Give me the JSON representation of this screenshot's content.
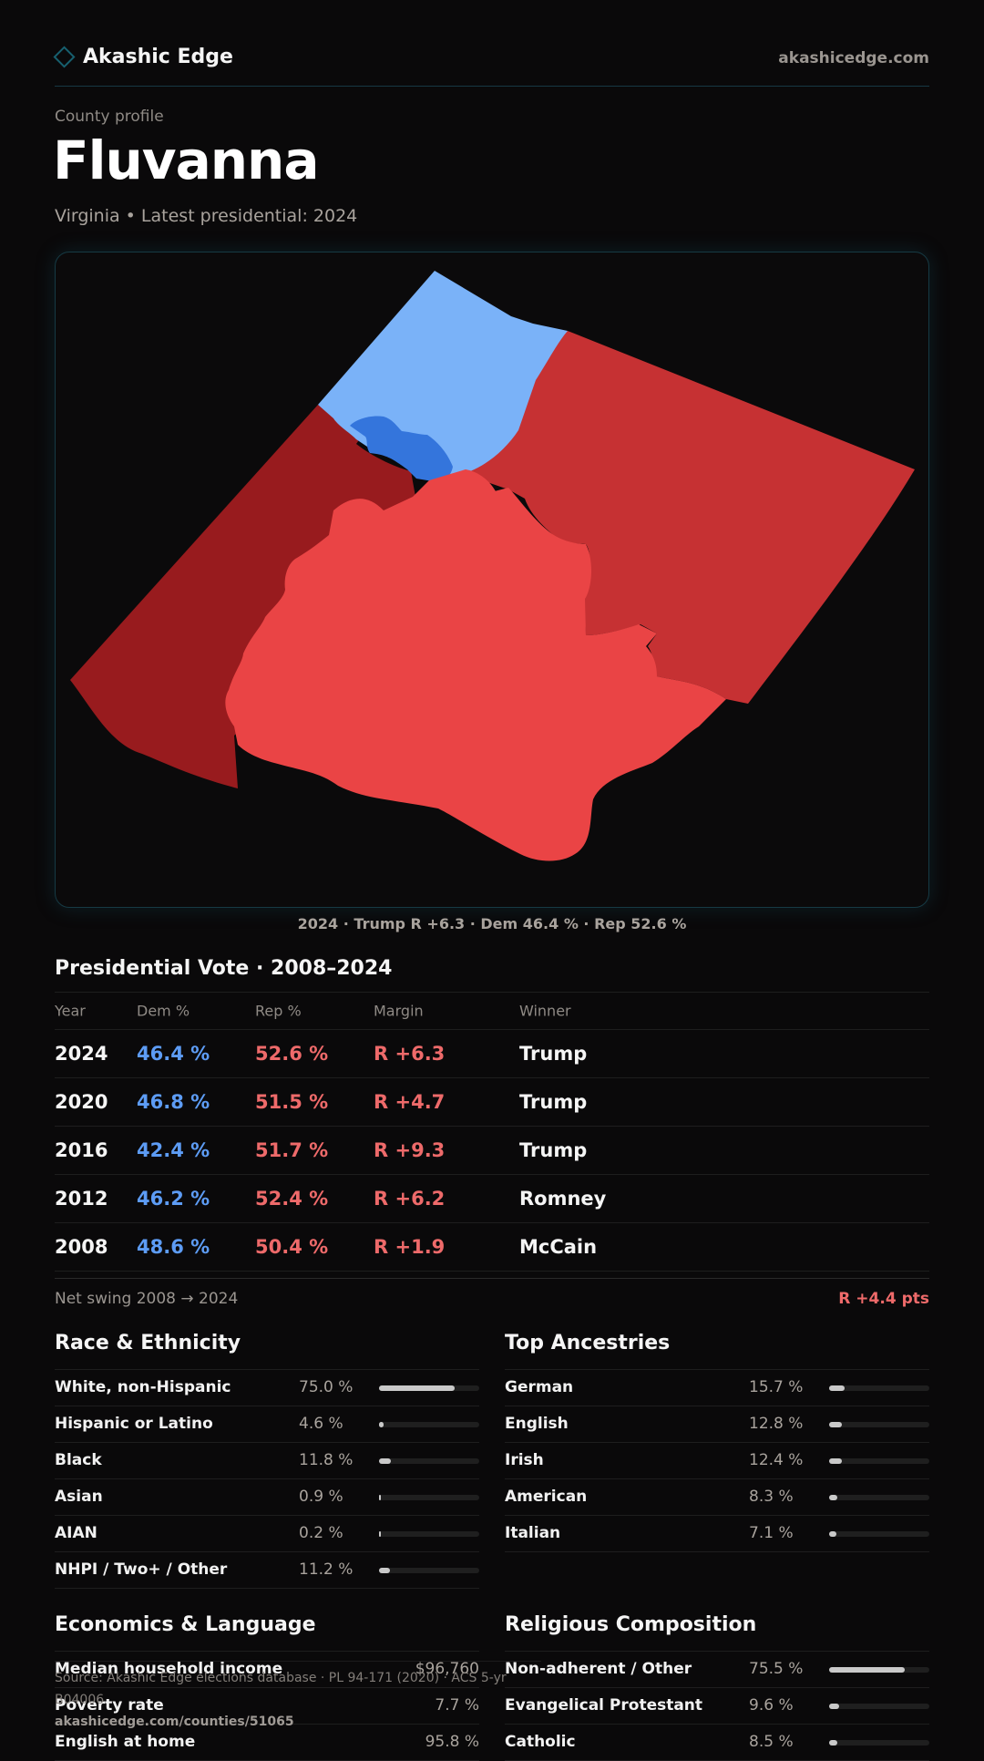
{
  "brand": {
    "name": "Akashic Edge",
    "site": "akashicedge.com"
  },
  "profile": {
    "kicker": "County profile",
    "title": "Fluvanna",
    "subtitle": "Virginia • Latest presidential: 2024"
  },
  "map": {
    "caption": "2024 · Trump R +6.3 · Dem 46.4 % · Rep 52.6 %",
    "colors": {
      "dem_light": "#7ab2f8",
      "dem_dark": "#3475dc",
      "rep_dark": "#981b1e",
      "rep_mid": "#c63133",
      "rep_light": "#ea4445"
    }
  },
  "presidential": {
    "title": "Presidential Vote · 2008–2024",
    "headers": {
      "year": "Year",
      "dem": "Dem %",
      "rep": "Rep %",
      "margin": "Margin",
      "winner": "Winner"
    },
    "rows": [
      {
        "year": "2024",
        "dem": "46.4 %",
        "rep": "52.6 %",
        "margin": "R +6.3",
        "winner": "Trump"
      },
      {
        "year": "2020",
        "dem": "46.8 %",
        "rep": "51.5 %",
        "margin": "R +4.7",
        "winner": "Trump"
      },
      {
        "year": "2016",
        "dem": "42.4 %",
        "rep": "51.7 %",
        "margin": "R +9.3",
        "winner": "Trump"
      },
      {
        "year": "2012",
        "dem": "46.2 %",
        "rep": "52.4 %",
        "margin": "R +6.2",
        "winner": "Romney"
      },
      {
        "year": "2008",
        "dem": "48.6 %",
        "rep": "50.4 %",
        "margin": "R +1.9",
        "winner": "McCain"
      }
    ],
    "swing_label": "Net swing 2008 → 2024",
    "swing_value": "R +4.4 pts"
  },
  "race": {
    "title": "Race & Ethnicity",
    "rows": [
      {
        "label": "White, non-Hispanic",
        "value": "75.0 %",
        "pct": 75.0
      },
      {
        "label": "Hispanic or Latino",
        "value": "4.6 %",
        "pct": 4.6
      },
      {
        "label": "Black",
        "value": "11.8 %",
        "pct": 11.8
      },
      {
        "label": "Asian",
        "value": "0.9 %",
        "pct": 0.9
      },
      {
        "label": "AIAN",
        "value": "0.2 %",
        "pct": 0.2
      },
      {
        "label": "NHPI / Two+ / Other",
        "value": "11.2 %",
        "pct": 11.2
      }
    ]
  },
  "ancestry": {
    "title": "Top Ancestries",
    "rows": [
      {
        "label": "German",
        "value": "15.7 %",
        "pct": 15.7
      },
      {
        "label": "English",
        "value": "12.8 %",
        "pct": 12.8
      },
      {
        "label": "Irish",
        "value": "12.4 %",
        "pct": 12.4
      },
      {
        "label": "American",
        "value": "8.3 %",
        "pct": 8.3
      },
      {
        "label": "Italian",
        "value": "7.1 %",
        "pct": 7.1
      }
    ]
  },
  "economics": {
    "title": "Economics & Language",
    "rows": [
      {
        "label": "Median household income",
        "value": "$96,760"
      },
      {
        "label": "Poverty rate",
        "value": "7.7 %"
      },
      {
        "label": "English at home",
        "value": "95.8 %"
      }
    ]
  },
  "religion": {
    "title": "Religious Composition",
    "rows": [
      {
        "label": "Non-adherent / Other",
        "value": "75.5 %",
        "pct": 75.5
      },
      {
        "label": "Evangelical Protestant",
        "value": "9.6 %",
        "pct": 9.6
      },
      {
        "label": "Catholic",
        "value": "8.5 %",
        "pct": 8.5
      }
    ]
  },
  "footer": {
    "source": "Source: Akashic Edge elections database · PL 94-171 (2020) · ACS 5-yr B04006",
    "url": "akashicedge.com/counties/51065"
  }
}
